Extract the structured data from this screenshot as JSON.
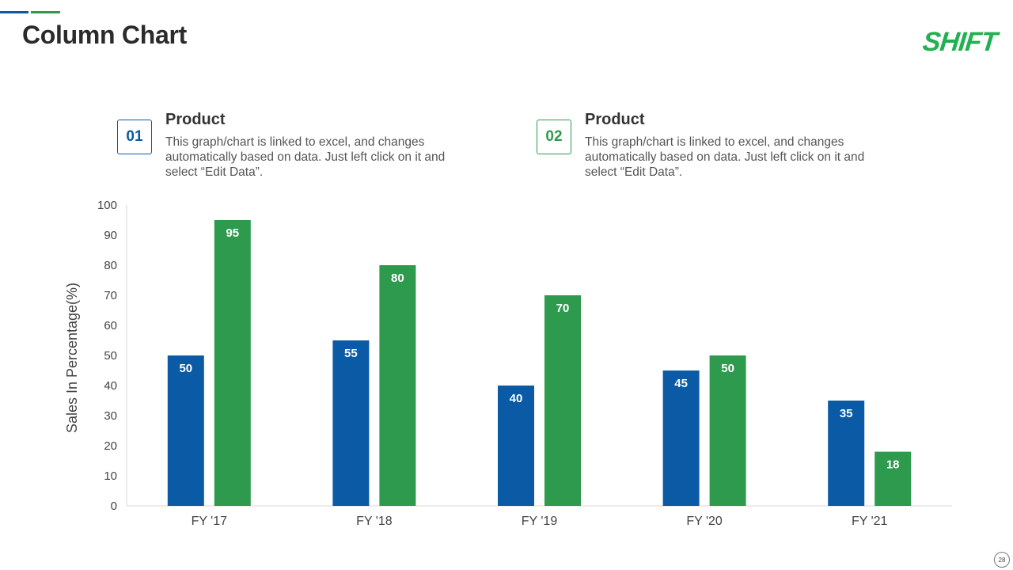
{
  "slide": {
    "title": "Column Chart",
    "logo": "SHIFT",
    "page_number": "28"
  },
  "info_blocks": [
    {
      "number": "01",
      "title": "Product",
      "description": "This graph/chart is linked to excel, and changes automatically based on data. Just left click on it and select “Edit Data”."
    },
    {
      "number": "02",
      "title": "Product",
      "description": "This graph/chart is linked to excel, and changes automatically based on data. Just left click on it and select “Edit Data”."
    }
  ],
  "colors": {
    "blue": "#0a5aa5",
    "green": "#2e9a4e",
    "logo": "#22b052"
  },
  "chart_data": {
    "type": "bar",
    "title": "",
    "xlabel": "",
    "ylabel": "Sales In Percentage(%)",
    "ylim": [
      0,
      100
    ],
    "yticks": [
      0,
      10,
      20,
      30,
      40,
      50,
      60,
      70,
      80,
      90,
      100
    ],
    "categories": [
      "FY '17",
      "FY '18",
      "FY '19",
      "FY '20",
      "FY '21"
    ],
    "series": [
      {
        "name": "Product 01",
        "color": "#0a5aa5",
        "values": [
          50,
          55,
          40,
          45,
          35
        ]
      },
      {
        "name": "Product 02",
        "color": "#2e9a4e",
        "values": [
          95,
          80,
          70,
          50,
          18
        ]
      }
    ],
    "grid": false,
    "data_labels": true
  }
}
